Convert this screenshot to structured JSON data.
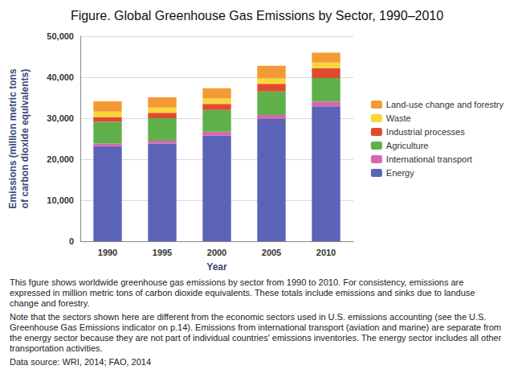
{
  "chart_data": {
    "type": "bar",
    "title": "Figure. Global Greenhouse Gas Emissions by Sector, 1990–2010",
    "x_label": "Year",
    "y_label": "Emissions (million metric tons\nof carbon dioxide equivalents)",
    "categories": [
      "1990",
      "1995",
      "2000",
      "2005",
      "2010"
    ],
    "series": [
      {
        "name": "Energy",
        "color": "#5b63b7",
        "values": [
          23200,
          23800,
          25800,
          29800,
          32900
        ]
      },
      {
        "name": "International transport",
        "color": "#d966b0",
        "values": [
          600,
          700,
          900,
          1000,
          1100
        ]
      },
      {
        "name": "Agriculture",
        "color": "#5fb04a",
        "values": [
          5300,
          5500,
          5300,
          5700,
          5800
        ]
      },
      {
        "name": "Industrial processes",
        "color": "#e04a2f",
        "values": [
          1200,
          1300,
          1500,
          1900,
          2400
        ]
      },
      {
        "name": "Waste",
        "color": "#f9d63b",
        "values": [
          1300,
          1300,
          1300,
          1300,
          1400
        ]
      },
      {
        "name": "Land-use change and forestry",
        "color": "#f39a35",
        "values": [
          2500,
          2500,
          2500,
          3100,
          2400
        ]
      }
    ],
    "stacked": true,
    "ylim": [
      0,
      50000
    ],
    "yticks": [
      0,
      {
        "value": 10000,
        "label": "10,000"
      },
      {
        "value": 20000,
        "label": "20,000"
      },
      {
        "value": 30000,
        "label": "30,000"
      },
      {
        "value": 40000,
        "label": "40,000"
      },
      {
        "value": 50000,
        "label": "50,000"
      }
    ],
    "grid": true,
    "legend": "right",
    "caption": [
      "This fgure shows worldwide greenhouse gas emissions by sector from 1990 to 2010. For consistency, emissions are expressed in million metric tons of carbon dioxide equivalents. These totals include emissions and sinks due to landuse change and forestry.",
      "Note that the sectors shown here are different from the economic sectors used in U.S. emissions accounting (see the U.S. Greenhouse Gas Emissions indicator on p.14). Emissions from international transport (aviation and marine) are separate from the energy sector because they are not part of individual countries' emissions inventories. The energy sector includes all other transportation activities."
    ],
    "source": "Data source: WRI, 2014; FAO, 2014"
  }
}
